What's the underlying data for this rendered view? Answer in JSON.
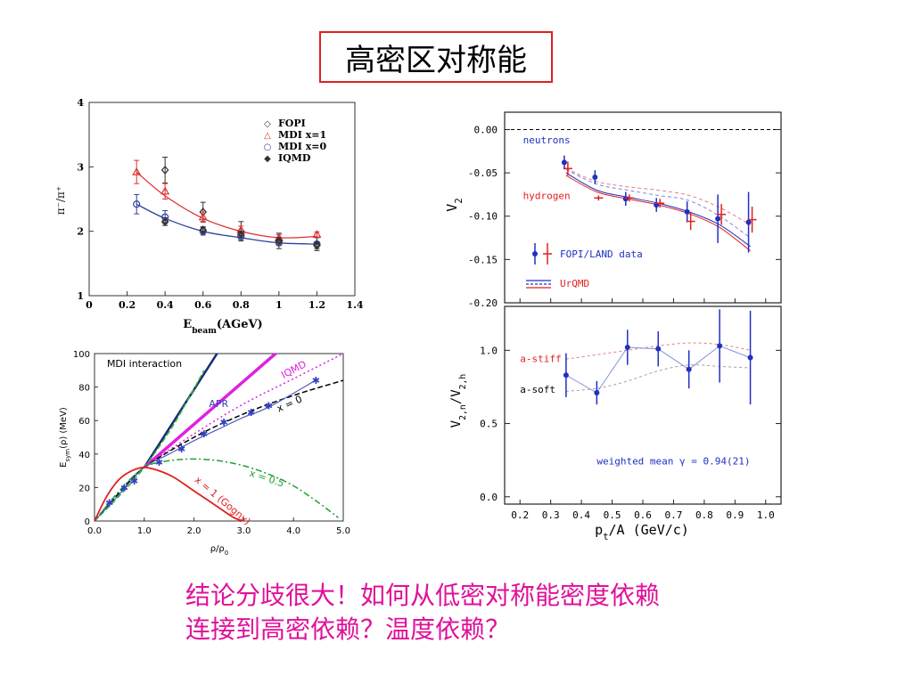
{
  "page": {
    "title": "高密区对称能",
    "caption_line1": "结论分歧很大！如何从低密对称能密度依赖",
    "caption_line2": "连接到高密依赖？温度依赖？"
  },
  "colors": {
    "title_border": "#e02020",
    "caption": "#e0109a"
  },
  "chart_data": [
    {
      "id": "pion-ratio",
      "type": "line",
      "xlabel": "E",
      "xlabel_sub": "beam",
      "xlabel_unit": "(AGeV)",
      "ylabel": "π⁻/π⁺",
      "xlim": [
        0,
        1.4
      ],
      "ylim": [
        1,
        4
      ],
      "xticks": [
        "0",
        "0.2",
        "0.4",
        "0.6",
        "0.8",
        "1",
        "1.2",
        "1.4"
      ],
      "yticks": [
        "1",
        "2",
        "3",
        "4"
      ],
      "legend": {
        "position": "top-right",
        "items": [
          {
            "symbol": "◇",
            "label": "FOPI",
            "color": "#333333"
          },
          {
            "symbol": "△",
            "label": "MDI x=1",
            "color": "#e03030"
          },
          {
            "symbol": "○",
            "label": "MDI x=0",
            "color": "#3040a0"
          },
          {
            "symbol": "◆",
            "label": "IQMD",
            "color": "#333333"
          }
        ]
      },
      "series": [
        {
          "name": "FOPI",
          "color": "#333333",
          "marker": "diamond",
          "x": [
            0.4,
            0.6,
            0.8,
            1.0,
            1.2
          ],
          "y": [
            2.95,
            2.3,
            2.0,
            1.85,
            1.8
          ],
          "err": [
            0.2,
            0.15,
            0.15,
            0.12,
            0.1
          ]
        },
        {
          "name": "MDI x=1",
          "color": "#e03030",
          "marker": "triangle",
          "x": [
            0.25,
            0.4,
            0.6,
            0.8,
            1.0,
            1.2
          ],
          "y": [
            2.92,
            2.62,
            2.22,
            2.02,
            1.9,
            1.95
          ],
          "err": [
            0.18,
            0.12,
            0.08,
            0.06,
            0.05,
            0.04
          ]
        },
        {
          "name": "MDI x=0",
          "color": "#3040a0",
          "marker": "circle",
          "x": [
            0.25,
            0.4,
            0.6,
            0.8,
            1.0,
            1.2
          ],
          "y": [
            2.42,
            2.22,
            2.0,
            1.92,
            1.82,
            1.8
          ],
          "err": [
            0.15,
            0.1,
            0.06,
            0.05,
            0.04,
            0.04
          ]
        },
        {
          "name": "IQMD",
          "color": "#333333",
          "marker": "diamondfill",
          "x": [
            0.4,
            0.6,
            0.8,
            1.0,
            1.2
          ],
          "y": [
            2.15,
            2.02,
            1.95,
            1.85,
            1.78
          ],
          "err": [
            0.06,
            0.05,
            0.05,
            0.05,
            0.05
          ]
        }
      ],
      "curves": [
        {
          "color": "#e03030",
          "x": [
            0.25,
            0.4,
            0.6,
            0.8,
            1.0,
            1.2
          ],
          "y": [
            2.92,
            2.55,
            2.2,
            2.0,
            1.9,
            1.92
          ]
        },
        {
          "color": "#3040a0",
          "x": [
            0.25,
            0.4,
            0.6,
            0.8,
            1.0,
            1.2
          ],
          "y": [
            2.42,
            2.2,
            2.0,
            1.9,
            1.82,
            1.8
          ]
        }
      ]
    },
    {
      "id": "esym",
      "type": "line",
      "xlabel": "ρ/ρ",
      "xlabel_sub": "0",
      "ylabel": "E",
      "ylabel_sub": "sym",
      "ylabel_rest": "(ρ) (MeV)",
      "xlim": [
        0,
        5
      ],
      "ylim": [
        0,
        100
      ],
      "xticks": [
        "0.0",
        "1.0",
        "2.0",
        "3.0",
        "4.0",
        "5.0"
      ],
      "yticks": [
        "0",
        "20",
        "40",
        "60",
        "80",
        "100"
      ],
      "annotations": [
        {
          "text": "MDI interaction",
          "x": 0.25,
          "y": 92,
          "color": "#000000",
          "size": 11
        },
        {
          "text": "IQMD",
          "x": 3.8,
          "y": 85,
          "color": "#e020e0",
          "size": 11,
          "rotate": -28
        },
        {
          "text": "x = 0",
          "x": 3.7,
          "y": 65,
          "color": "#000000",
          "size": 11,
          "rotate": -24
        },
        {
          "text": "APR",
          "x": 2.3,
          "y": 68,
          "color": "#3040c0",
          "size": 11
        },
        {
          "text": "x = 0.5",
          "x": 3.1,
          "y": 27,
          "color": "#20a030",
          "size": 11,
          "rotate": 18
        },
        {
          "text": "x = 1 (Gogny)",
          "x": 2.0,
          "y": 24,
          "color": "#e02020",
          "size": 11,
          "rotate": 40
        }
      ],
      "curves": [
        {
          "name": "navy",
          "color": "#1a2a7a",
          "width": 2.5,
          "dash": "",
          "x": [
            1.0,
            2.85
          ],
          "y": [
            32,
            118
          ]
        },
        {
          "name": "magenta",
          "color": "#e020e0",
          "width": 3.5,
          "dash": "",
          "x": [
            1.0,
            3.95
          ],
          "y": [
            32,
            108
          ]
        },
        {
          "name": "green-steep",
          "color": "#30c030",
          "width": 1.5,
          "dash": "6,3",
          "x": [
            0,
            0.5,
            1.0,
            1.6,
            2.2
          ],
          "y": [
            0,
            15,
            32,
            58,
            90
          ]
        },
        {
          "name": "IQMD",
          "color": "#e020e0",
          "width": 1.5,
          "dash": "2,3",
          "x": [
            0,
            0.5,
            1.0,
            2.0,
            3.0,
            4.0,
            5.0
          ],
          "y": [
            0,
            18,
            32,
            52,
            70,
            85,
            100
          ]
        },
        {
          "name": "x=0",
          "color": "#000000",
          "width": 1.5,
          "dash": "6,3",
          "x": [
            0,
            0.5,
            1.0,
            2.0,
            3.0,
            4.0,
            5.0
          ],
          "y": [
            0,
            17,
            32,
            50,
            64,
            75,
            84
          ]
        },
        {
          "name": "APR",
          "color": "#5060c0",
          "width": 1.2,
          "dash": "",
          "x": [
            0,
            0.5,
            1.0,
            1.5,
            2.0,
            2.5,
            3.0,
            3.5,
            4.5
          ],
          "y": [
            0,
            16,
            32,
            40,
            48,
            55,
            62,
            68,
            85
          ]
        },
        {
          "name": "x=0.5",
          "color": "#20a030",
          "width": 1.5,
          "dash": "7,3,2,3",
          "x": [
            0,
            0.5,
            1.0,
            1.5,
            2.0,
            2.5,
            3.0,
            3.5,
            4.0,
            4.5,
            4.9
          ],
          "y": [
            0,
            18,
            32,
            36,
            37,
            36,
            33,
            28,
            21,
            11,
            2
          ]
        },
        {
          "name": "x=1 (Gogny)",
          "color": "#e02020",
          "width": 1.8,
          "dash": "",
          "x": [
            0,
            0.25,
            0.5,
            0.75,
            1.0,
            1.3,
            1.6,
            2.0,
            2.5,
            2.8,
            3.0
          ],
          "y": [
            0,
            15,
            25,
            30,
            32,
            30,
            26,
            18,
            8,
            2,
            0
          ]
        }
      ],
      "markers": {
        "color": "#3040c0",
        "symbol": "✱",
        "x": [
          0.3,
          0.6,
          0.8,
          1.3,
          1.75,
          2.2,
          2.6,
          3.15,
          3.5,
          4.45
        ],
        "y": [
          11,
          20,
          24,
          35,
          43,
          52,
          59,
          65,
          69,
          84
        ]
      }
    },
    {
      "id": "v2-top",
      "type": "line",
      "xlim": [
        0.15,
        1.05
      ],
      "ylim": [
        -0.2,
        0.02
      ],
      "ylabel": "V",
      "ylabel_sub": "2",
      "yticks": [
        "0.00",
        "-0.05",
        "-0.10",
        "-0.15",
        "-0.20"
      ],
      "ytick_values": [
        0,
        -0.05,
        -0.1,
        -0.15,
        -0.2
      ],
      "zero_line": true,
      "annotations": [
        {
          "text": "neutrons",
          "x": 0.21,
          "y": -0.016,
          "color": "#2030c0",
          "size": 11
        },
        {
          "text": "hydrogen",
          "x": 0.21,
          "y": -0.08,
          "color": "#e02020",
          "size": 11
        }
      ],
      "legend": {
        "position": "bottom-left",
        "items": [
          {
            "label": "FOPI/LAND data",
            "color": "#2030c0"
          },
          {
            "label": "UrQMD",
            "color": "#e02020"
          }
        ]
      },
      "series": [
        {
          "name": "neutrons",
          "color": "#2030c0",
          "marker": "dot",
          "x": [
            0.35,
            0.45,
            0.55,
            0.65,
            0.75,
            0.85,
            0.95
          ],
          "y": [
            -0.038,
            -0.055,
            -0.08,
            -0.087,
            -0.095,
            -0.103,
            -0.107
          ],
          "err": [
            0.008,
            0.008,
            0.008,
            0.008,
            0.012,
            0.028,
            0.035
          ]
        },
        {
          "name": "hydrogen",
          "color": "#e02020",
          "marker": "cross",
          "x": [
            0.35,
            0.45,
            0.55,
            0.65,
            0.75,
            0.85,
            0.95
          ],
          "y": [
            -0.045,
            -0.079,
            -0.079,
            -0.085,
            -0.106,
            -0.098,
            -0.104
          ],
          "err": [
            0.008,
            0.003,
            0.004,
            0.005,
            0.01,
            0.012,
            0.015
          ]
        }
      ],
      "curves": [
        {
          "color": "#2030c0",
          "dash": "",
          "x": [
            0.35,
            0.45,
            0.55,
            0.65,
            0.75,
            0.85,
            0.95
          ],
          "y": [
            -0.05,
            -0.07,
            -0.078,
            -0.085,
            -0.095,
            -0.11,
            -0.135
          ]
        },
        {
          "color": "#e02020",
          "dash": "",
          "x": [
            0.35,
            0.45,
            0.55,
            0.65,
            0.75,
            0.85,
            0.95
          ],
          "y": [
            -0.053,
            -0.072,
            -0.08,
            -0.087,
            -0.097,
            -0.113,
            -0.14
          ]
        },
        {
          "color": "#8080e0",
          "dash": "4,3",
          "x": [
            0.35,
            0.45,
            0.55,
            0.65,
            0.75,
            0.85,
            0.95
          ],
          "y": [
            -0.046,
            -0.063,
            -0.07,
            -0.076,
            -0.082,
            -0.1,
            -0.125
          ]
        },
        {
          "color": "#e08080",
          "dash": "4,3",
          "x": [
            0.35,
            0.45,
            0.55,
            0.65,
            0.75,
            0.85,
            0.95
          ],
          "y": [
            -0.045,
            -0.06,
            -0.066,
            -0.07,
            -0.076,
            -0.09,
            -0.11
          ]
        }
      ]
    },
    {
      "id": "v2-ratio",
      "type": "line",
      "xlim": [
        0.15,
        1.05
      ],
      "ylim": [
        -0.05,
        1.3
      ],
      "xlabel": "p",
      "xlabel_sub": "t",
      "xlabel_rest": "/A  (GeV/c)",
      "ylabel": "V",
      "ylabel_sub": "2,n",
      "ylabel_rest": "/V",
      "ylabel_sub2": "2,h",
      "xticks": [
        "0.2",
        "0.3",
        "0.4",
        "0.5",
        "0.6",
        "0.7",
        "0.8",
        "0.9",
        "1.0"
      ],
      "xtick_values": [
        0.2,
        0.3,
        0.4,
        0.5,
        0.6,
        0.7,
        0.8,
        0.9,
        1.0
      ],
      "yticks": [
        "0.0",
        "0.5",
        "1.0"
      ],
      "ytick_values": [
        0,
        0.5,
        1.0
      ],
      "annotations": [
        {
          "text": "a-stiff",
          "x": 0.2,
          "y": 0.92,
          "color": "#e02020",
          "size": 11
        },
        {
          "text": "a-soft",
          "x": 0.2,
          "y": 0.71,
          "color": "#000000",
          "size": 11
        },
        {
          "text": "weighted mean  γ  =  0.94(21)",
          "x": 0.45,
          "y": 0.22,
          "color": "#2030c0",
          "size": 11
        }
      ],
      "series": [
        {
          "name": "ratio",
          "color": "#2030c0",
          "marker": "dot",
          "x": [
            0.35,
            0.45,
            0.55,
            0.65,
            0.75,
            0.85,
            0.95
          ],
          "y": [
            0.83,
            0.71,
            1.02,
            1.01,
            0.87,
            1.03,
            0.95
          ],
          "err": [
            0.15,
            0.08,
            0.12,
            0.12,
            0.13,
            0.25,
            0.32
          ]
        }
      ],
      "curves": [
        {
          "color": "#e08080",
          "dash": "3,3",
          "x": [
            0.35,
            0.45,
            0.55,
            0.65,
            0.75,
            0.85,
            0.95
          ],
          "y": [
            0.94,
            0.97,
            1.0,
            1.03,
            1.05,
            1.04,
            1.0
          ]
        },
        {
          "color": "#a0a0a0",
          "dash": "3,3",
          "x": [
            0.35,
            0.45,
            0.55,
            0.65,
            0.75,
            0.85,
            0.95
          ],
          "y": [
            0.72,
            0.74,
            0.79,
            0.86,
            0.9,
            0.89,
            0.88
          ]
        }
      ]
    }
  ]
}
